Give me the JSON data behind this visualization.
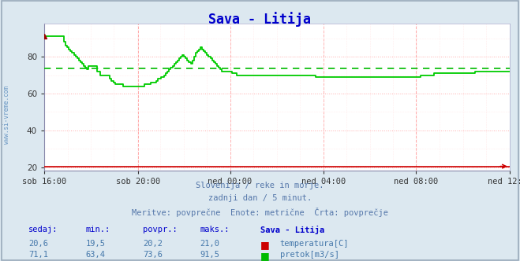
{
  "title": "Sava - Litija",
  "title_color": "#0000cc",
  "bg_color": "#dce8f0",
  "plot_bg_color": "#ffffff",
  "watermark": "www.si-vreme.com",
  "subtitle_lines": [
    "Slovenija / reke in morje.",
    "zadnji dan / 5 minut.",
    "Meritve: povprečne  Enote: metrične  Črta: povprečje"
  ],
  "xlabel_ticks": [
    "sob 16:00",
    "sob 20:00",
    "ned 00:00",
    "ned 04:00",
    "ned 08:00",
    "ned 12:00"
  ],
  "ylim": [
    18,
    98
  ],
  "yticks": [
    20,
    40,
    60,
    80
  ],
  "grid_color_major": "#ffaaaa",
  "grid_color_minor": "#ffdddd",
  "avg_line_value": 73.6,
  "avg_line_color": "#00bb00",
  "temp_color": "#cc0000",
  "flow_color": "#00cc00",
  "temp_dotted_color": "#ff8888",
  "temp_line_value": 20.5,
  "flow_data_y": [
    91,
    91,
    91,
    91,
    91,
    91,
    91,
    91,
    91,
    91,
    91,
    91,
    88,
    86,
    85,
    84,
    83,
    82,
    81,
    80,
    79,
    78,
    77,
    76,
    75,
    74,
    73,
    75,
    75,
    75,
    75,
    75,
    72,
    72,
    70,
    70,
    70,
    70,
    70,
    70,
    68,
    67,
    66,
    65,
    65,
    65,
    65,
    65,
    64,
    64,
    64,
    64,
    64,
    64,
    64,
    64,
    64,
    64,
    64,
    64,
    64,
    65,
    65,
    65,
    65,
    66,
    66,
    66,
    67,
    68,
    68,
    69,
    69,
    70,
    71,
    72,
    73,
    74,
    75,
    76,
    77,
    78,
    79,
    80,
    81,
    80,
    79,
    78,
    77,
    76,
    78,
    80,
    82,
    83,
    84,
    85,
    84,
    83,
    82,
    81,
    80,
    79,
    78,
    77,
    76,
    75,
    74,
    73,
    72,
    72,
    72,
    72,
    72,
    72,
    71,
    71,
    71,
    70,
    70,
    70,
    70,
    70,
    70,
    70,
    70,
    70,
    70,
    70,
    70,
    70,
    70,
    70,
    70,
    70,
    70,
    70,
    70,
    70,
    70,
    70,
    70,
    70,
    70,
    70,
    70,
    70,
    70,
    70,
    70,
    70,
    70,
    70,
    70,
    70,
    70,
    70,
    70,
    70,
    70,
    70,
    70,
    70,
    70,
    70,
    70,
    69,
    69,
    69,
    69,
    69,
    69,
    69,
    69,
    69,
    69,
    69,
    69,
    69,
    69,
    69,
    69,
    69,
    69,
    69,
    69,
    69,
    69,
    69,
    69,
    69,
    69,
    69,
    69,
    69,
    69,
    69,
    69,
    69,
    69,
    69,
    69,
    69,
    69,
    69,
    69,
    69,
    69,
    69,
    69,
    69,
    69,
    69,
    69,
    69,
    69,
    69,
    69,
    69,
    69,
    69,
    69,
    69,
    69,
    69,
    69,
    69,
    69,
    69,
    69,
    70,
    70,
    70,
    70,
    70,
    70,
    70,
    70,
    71,
    71,
    71,
    71,
    71,
    71,
    71,
    71,
    71,
    71,
    71,
    71,
    71,
    71,
    71,
    71,
    71,
    71,
    71,
    71,
    71,
    71,
    71,
    71,
    71,
    72,
    72,
    72,
    72,
    72,
    72,
    72,
    72,
    72,
    72,
    72,
    72,
    72,
    72,
    72,
    72,
    72,
    72,
    72,
    72,
    72,
    72
  ],
  "table_headers": [
    "sedaj:",
    "min.:",
    "povpr.:",
    "maks.:",
    "Sava - Litija"
  ],
  "table_row1": [
    "20,6",
    "19,5",
    "20,2",
    "21,0"
  ],
  "table_row1_color": "#cc0000",
  "table_row1_label": "temperatura[C]",
  "table_row2": [
    "71,1",
    "63,4",
    "73,6",
    "91,5"
  ],
  "table_row2_color": "#00bb00",
  "table_row2_label": "pretok[m3/s]",
  "table_header_color": "#0000cc",
  "table_value_color": "#4477aa"
}
